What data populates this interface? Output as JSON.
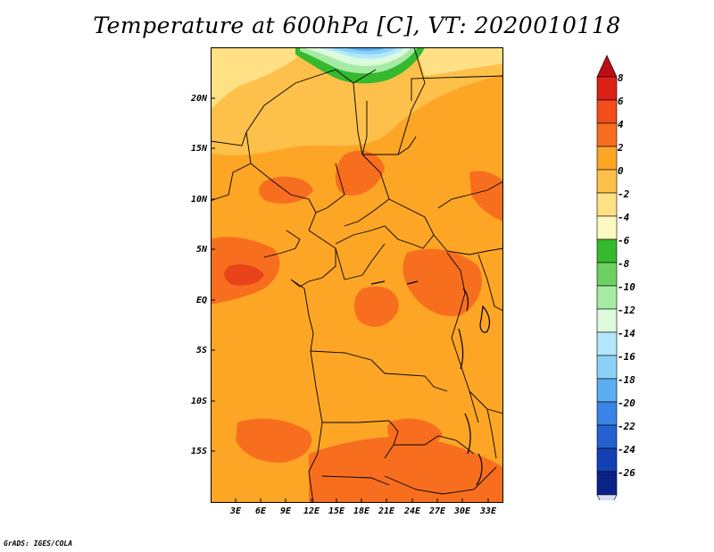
{
  "title": "Temperature at 600hPa [C], VT: 2020010118",
  "credit": "GrADS: IGES/COLA",
  "lat_labels": [
    "20N",
    "15N",
    "10N",
    "5N",
    "EQ",
    "5S",
    "10S",
    "15S"
  ],
  "lon_labels": [
    "3E",
    "6E",
    "9E",
    "12E",
    "15E",
    "18E",
    "21E",
    "24E",
    "27E",
    "30E",
    "33E"
  ],
  "colorbar": {
    "levels": [
      "8",
      "6",
      "4",
      "2",
      "0",
      "-2",
      "-4",
      "-6",
      "-8",
      "-10",
      "-12",
      "-14",
      "-16",
      "-18",
      "-20",
      "-22",
      "-24",
      "-26"
    ],
    "colors": [
      "#dd2016",
      "#f24d1b",
      "#f86e1f",
      "#fda625",
      "#fdc04a",
      "#ffe084",
      "#fdf9c0",
      "#35b92e",
      "#6bd260",
      "#a5eba4",
      "#dcfadc",
      "#b3e7fc",
      "#8bd1f7",
      "#5dadf1",
      "#3984e6",
      "#2462d1",
      "#1241b3",
      "#0b2288"
    ],
    "over_color": "#bd0d14",
    "under_color": "#d8ddf5"
  },
  "map_colors": {
    "warm_4_6": "#f86e1f",
    "warm_2_4": "#fda625",
    "warm_0_2": "#fdc04a",
    "mild_m2_0": "#ffe084",
    "mild_m4_m2": "#fdf9c0",
    "cold_m6": "#35b92e",
    "cold_m8": "#6bd260",
    "cold_m10": "#a5eba4",
    "cold_m12": "#b3e7fc",
    "cold_m14": "#8bd1f7",
    "cold_m16": "#5dadf1"
  }
}
